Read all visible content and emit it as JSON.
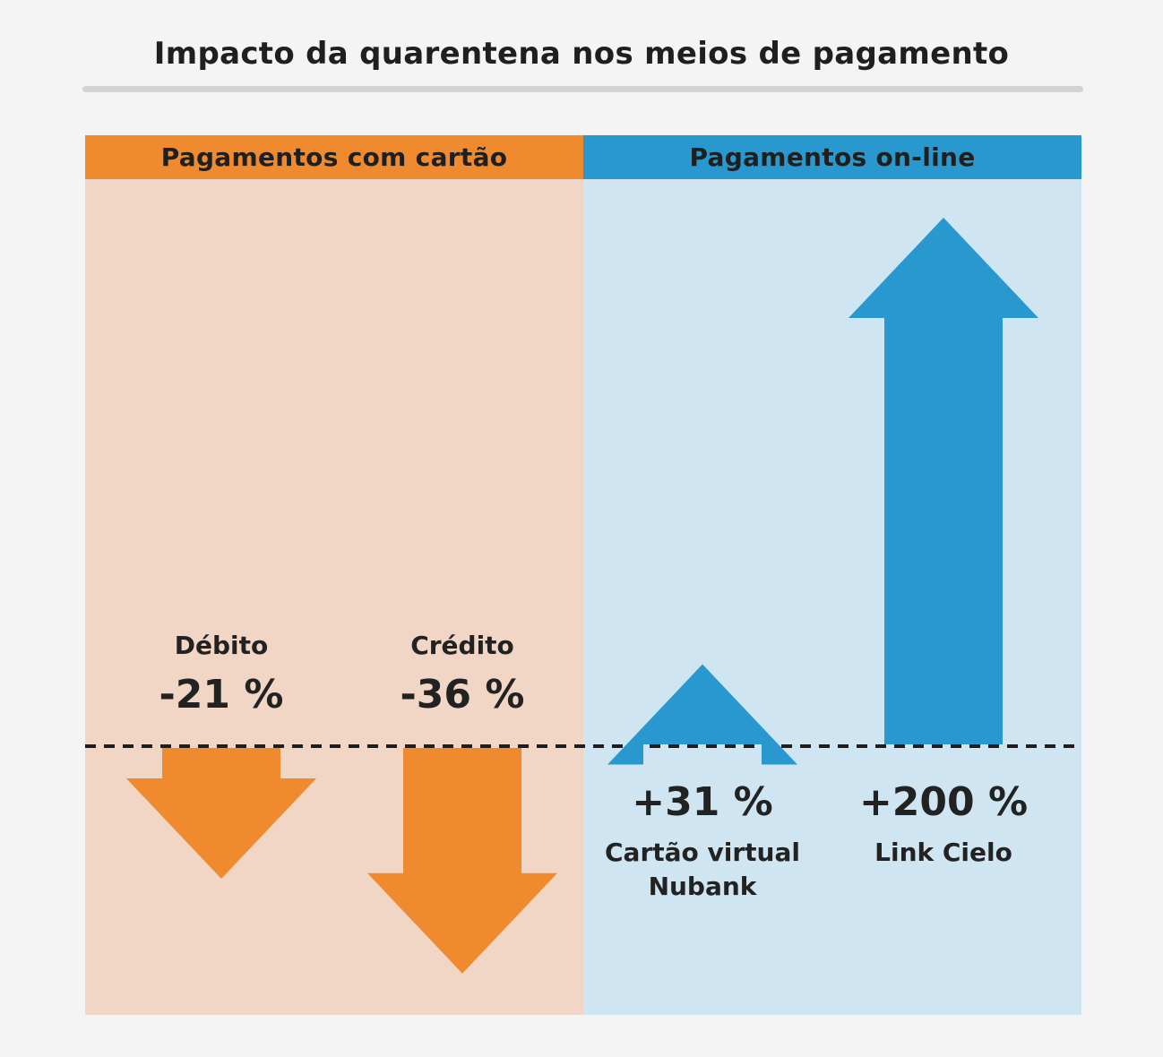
{
  "title": "Impacto da quarentena nos meios de pagamento",
  "colors": {
    "orange": "#ef8b2e",
    "orange_light": "#f2d6c5",
    "blue": "#2898cf",
    "blue_light": "#cfe6f2",
    "baseline": "#1e1e1e",
    "rule": "#d3d3d3"
  },
  "panels": [
    {
      "header": "Pagamentos com cartão",
      "color": "orange"
    },
    {
      "header": "Pagamentos on-line",
      "color": "blue"
    }
  ],
  "chart_data": {
    "type": "bar",
    "title": "Impacto da quarentena nos meios de pagamento",
    "groups": [
      "Pagamentos com cartão",
      "Pagamentos on-line"
    ],
    "categories": [
      "Débito",
      "Crédito",
      "Cartão virtual Nubank",
      "Link Cielo"
    ],
    "values": [
      -21,
      -36,
      31,
      200
    ],
    "value_labels": [
      "-21 %",
      "-36 %",
      "+31 %",
      "+200 %"
    ],
    "group_of_category": [
      0,
      0,
      1,
      1
    ],
    "unit": "%",
    "baseline": 0,
    "grid": false,
    "legend": "none",
    "mark": "arrow"
  }
}
